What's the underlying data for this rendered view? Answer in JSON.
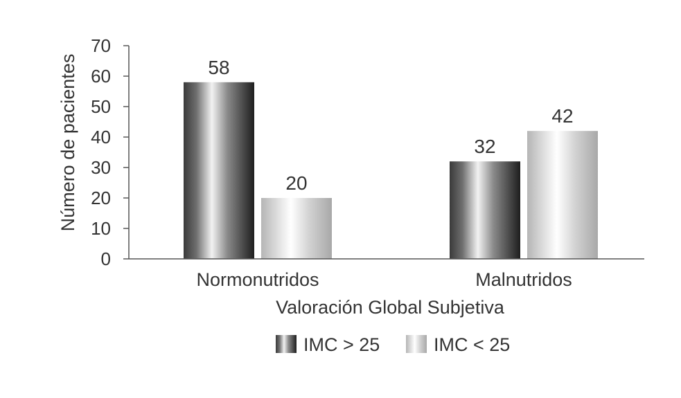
{
  "chart_data": {
    "type": "bar",
    "title": "",
    "xlabel": "Valoración Global Subjetiva",
    "ylabel": "Número de pacientes",
    "categories": [
      "Normonutridos",
      "Malnutridos"
    ],
    "series": [
      {
        "name": "IMC > 25",
        "values": [
          58,
          32
        ],
        "gradient": "dark"
      },
      {
        "name": "IMC < 25",
        "values": [
          20,
          42
        ],
        "gradient": "light"
      }
    ],
    "ylim": [
      0,
      70
    ],
    "yticks": [
      0,
      10,
      20,
      30,
      40,
      50,
      60,
      70
    ],
    "data_labels": true,
    "grid": false,
    "legend": "bottom"
  }
}
